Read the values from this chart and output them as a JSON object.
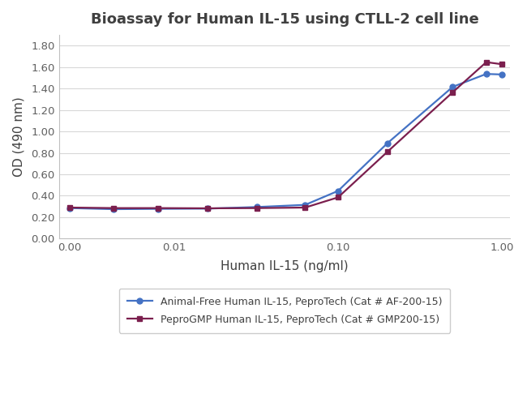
{
  "title": "Bioassay for Human IL-15 using CTLL-2 cell line",
  "xlabel": "Human IL-15 (ng/ml)",
  "ylabel": "OD (490 nm)",
  "series1": {
    "label": "Animal-Free Human IL-15, PeproTech (Cat # AF-200-15)",
    "color": "#4472C4",
    "marker": "o",
    "x": [
      0.0,
      0.004,
      0.008,
      0.016,
      0.032,
      0.063,
      0.1,
      0.2,
      0.5,
      0.8,
      1.0
    ],
    "y": [
      0.285,
      0.275,
      0.278,
      0.28,
      0.295,
      0.315,
      0.445,
      0.89,
      1.415,
      1.535,
      1.53
    ]
  },
  "series2": {
    "label": "PeproGMP Human IL-15, PeproTech (Cat # GMP200-15)",
    "color": "#7B1F4E",
    "marker": "s",
    "x": [
      0.0,
      0.004,
      0.008,
      0.016,
      0.032,
      0.063,
      0.1,
      0.2,
      0.5,
      0.8,
      1.0
    ],
    "y": [
      0.29,
      0.285,
      0.285,
      0.283,
      0.285,
      0.29,
      0.385,
      0.81,
      1.365,
      1.645,
      1.625
    ]
  },
  "ylim": [
    0.0,
    1.9
  ],
  "yticks": [
    0.0,
    0.2,
    0.4,
    0.6,
    0.8,
    1.0,
    1.2,
    1.4,
    1.6,
    1.8
  ],
  "xtick_labels": [
    "0.00",
    "0.01",
    "0.10",
    "1.00"
  ],
  "xtick_positions_log": [
    0.01,
    0.1,
    1.0
  ],
  "background_color": "#FFFFFF",
  "grid_color": "#D8D8D8",
  "title_fontsize": 13,
  "label_fontsize": 11,
  "tick_fontsize": 9.5,
  "legend_fontsize": 9,
  "title_color": "#404040",
  "axis_label_color": "#404040",
  "tick_color": "#606060",
  "spine_color": "#C0C0C0"
}
